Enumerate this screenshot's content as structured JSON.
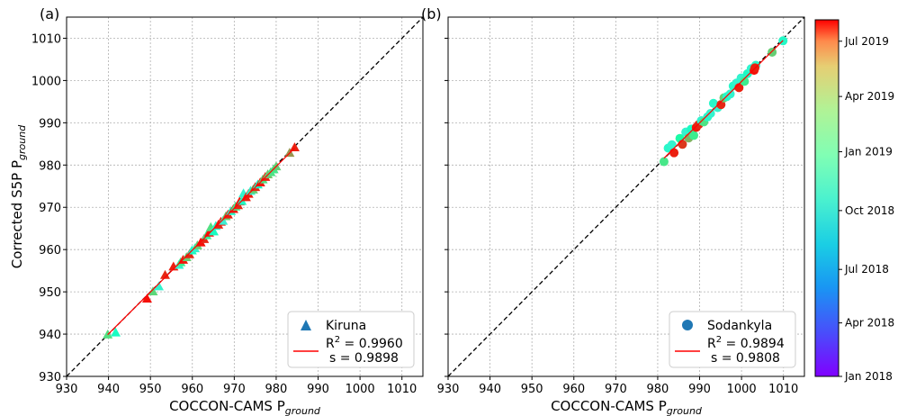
{
  "chart_data": [
    {
      "type": "scatter",
      "panel_label": "(a)",
      "xlabel": "COCCON-CAMS P",
      "xlabel_sub": "ground",
      "ylabel": "Corrected S5P P",
      "ylabel_sub": "ground",
      "xlim": [
        930,
        1015
      ],
      "ylim": [
        930,
        1015
      ],
      "xticks": [
        930,
        940,
        950,
        960,
        970,
        980,
        990,
        1000,
        1010
      ],
      "yticks": [
        930,
        940,
        950,
        960,
        970,
        980,
        990,
        1000,
        1010
      ],
      "grid": true,
      "legend_location": "lower right",
      "marker": "triangle",
      "series": [
        {
          "name": "Kiruna",
          "points": [
            [
              939.8,
              939.9,
              0.66
            ],
            [
              941.7,
              940.4,
              0.45
            ],
            [
              949.2,
              948.4,
              0.98
            ],
            [
              950.6,
              950.1,
              0.68
            ],
            [
              952.0,
              951.3,
              0.4
            ],
            [
              953.5,
              954.0,
              0.95
            ],
            [
              955.5,
              956.0,
              0.96
            ],
            [
              956.8,
              956.4,
              0.4
            ],
            [
              957.2,
              957.0,
              0.62
            ],
            [
              957.8,
              957.6,
              0.97
            ],
            [
              958.6,
              958.2,
              0.7
            ],
            [
              959.3,
              958.9,
              0.95
            ],
            [
              959.9,
              959.8,
              0.45
            ],
            [
              960.6,
              960.3,
              0.4
            ],
            [
              961.2,
              961.0,
              0.7
            ],
            [
              962.0,
              961.7,
              0.98
            ],
            [
              962.8,
              962.5,
              0.95
            ],
            [
              963.4,
              963.4,
              0.6
            ],
            [
              964.0,
              964.0,
              0.98
            ],
            [
              964.4,
              965.3,
              0.66
            ],
            [
              965.1,
              964.3,
              0.45
            ],
            [
              965.6,
              965.6,
              0.42
            ],
            [
              966.2,
              965.9,
              0.95
            ],
            [
              966.8,
              966.6,
              0.97
            ],
            [
              967.3,
              966.8,
              0.38
            ],
            [
              968.0,
              967.9,
              0.7
            ],
            [
              968.5,
              968.3,
              0.96
            ],
            [
              969.2,
              969.1,
              0.43
            ],
            [
              969.8,
              969.6,
              0.97
            ],
            [
              970.3,
              970.2,
              0.62
            ],
            [
              970.9,
              970.5,
              0.95
            ],
            [
              971.3,
              971.4,
              0.98
            ],
            [
              971.8,
              971.5,
              0.44
            ],
            [
              972.2,
              973.3,
              0.4
            ],
            [
              972.8,
              972.4,
              0.96
            ],
            [
              973.4,
              973.2,
              0.97
            ],
            [
              973.9,
              973.9,
              0.4
            ],
            [
              974.5,
              974.2,
              0.7
            ],
            [
              975.0,
              974.8,
              0.95
            ],
            [
              975.6,
              975.4,
              0.45
            ],
            [
              976.2,
              975.9,
              0.97
            ],
            [
              976.8,
              976.6,
              0.66
            ],
            [
              977.4,
              977.2,
              0.96
            ],
            [
              978.0,
              977.8,
              0.72
            ],
            [
              978.7,
              978.3,
              0.65
            ],
            [
              979.4,
              979.0,
              0.64
            ],
            [
              980.0,
              979.7,
              0.7
            ],
            [
              983.2,
              982.9,
              0.8
            ],
            [
              984.4,
              984.2,
              0.96
            ]
          ]
        }
      ],
      "fit": {
        "r2_label": "R",
        "r2_sup": "2",
        "r2_text": " = 0.9960",
        "slope_text": "s = 0.9898",
        "slope": 0.9898,
        "color": "#ff0000"
      },
      "reference_line": "1:1 dashed"
    },
    {
      "type": "scatter",
      "panel_label": "(b)",
      "xlabel": "COCCON-CAMS P",
      "xlabel_sub": "ground",
      "ylabel": "",
      "xlim": [
        930,
        1015
      ],
      "ylim": [
        930,
        1015
      ],
      "xticks": [
        930,
        940,
        950,
        960,
        970,
        980,
        990,
        1000,
        1010
      ],
      "yticks": [
        930,
        940,
        950,
        960,
        970,
        980,
        990,
        1000,
        1010
      ],
      "grid": true,
      "legend_location": "lower right",
      "marker": "circle",
      "series": [
        {
          "name": "Sodankyla",
          "points": [
            [
              981.5,
              980.8,
              0.64
            ],
            [
              982.5,
              984.0,
              0.42
            ],
            [
              983.4,
              984.8,
              0.4
            ],
            [
              983.9,
              982.9,
              0.96
            ],
            [
              985.3,
              986.3,
              0.55
            ],
            [
              985.9,
              984.9,
              0.93
            ],
            [
              986.7,
              987.8,
              0.4
            ],
            [
              987.4,
              986.4,
              0.75
            ],
            [
              988.0,
              988.5,
              0.45
            ],
            [
              988.6,
              987.0,
              0.62
            ],
            [
              989.2,
              988.9,
              0.97
            ],
            [
              989.8,
              989.6,
              0.95
            ],
            [
              990.4,
              990.5,
              0.4
            ],
            [
              991.0,
              990.2,
              0.65
            ],
            [
              991.9,
              991.4,
              0.42
            ],
            [
              992.6,
              992.2,
              0.4
            ],
            [
              993.3,
              994.6,
              0.42
            ],
            [
              994.3,
              993.6,
              0.4
            ],
            [
              995.1,
              994.3,
              0.95
            ],
            [
              995.8,
              995.9,
              0.7
            ],
            [
              996.5,
              996.2,
              0.43
            ],
            [
              997.3,
              996.8,
              0.4
            ],
            [
              998.0,
              998.7,
              0.42
            ],
            [
              998.8,
              999.4,
              0.4
            ],
            [
              999.4,
              998.3,
              0.96
            ],
            [
              999.9,
              1000.6,
              0.4
            ],
            [
              1000.7,
              999.8,
              0.62
            ],
            [
              1001.4,
              1001.6,
              0.44
            ],
            [
              1002.3,
              1002.8,
              0.4
            ],
            [
              1003.0,
              1002.4,
              0.98
            ],
            [
              1003.4,
              1003.6,
              0.42
            ],
            [
              1003.2,
              1003.0,
              0.96
            ],
            [
              1007.3,
              1006.7,
              0.7
            ],
            [
              1009.9,
              1009.4,
              0.43
            ]
          ]
        }
      ],
      "fit": {
        "r2_label": "R",
        "r2_sup": "2",
        "r2_text": " = 0.9894",
        "slope_text": "s = 0.9808",
        "slope": 0.9808,
        "color": "#ff0000"
      },
      "reference_line": "1:1 dashed"
    }
  ],
  "colorbar": {
    "cmap": "rainbow",
    "range": [
      "Jan 2018",
      "Oct 2019"
    ],
    "ticks": [
      {
        "label": "Jan 2018",
        "frac": 0.0
      },
      {
        "label": "Apr 2018",
        "frac": 0.15
      },
      {
        "label": "Jul 2018",
        "frac": 0.3
      },
      {
        "label": "Oct 2018",
        "frac": 0.465
      },
      {
        "label": "Jan 2019",
        "frac": 0.63
      },
      {
        "label": "Apr 2019",
        "frac": 0.785
      },
      {
        "label": "Jul 2019",
        "frac": 0.94
      }
    ]
  }
}
